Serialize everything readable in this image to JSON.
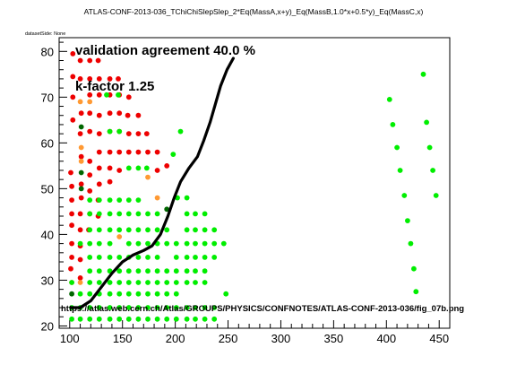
{
  "chart_data": {
    "type": "scatter",
    "title": "ATLAS-CONF-2013-036_TChiChiSlepSlep_2*Eq(MassA,x+y)_Eq(MassB,1.0*x+0.5*y)_Eq(MassC,x)",
    "subtitle": "datasetSide: None",
    "xlabel": "",
    "ylabel": "",
    "xlim": [
      90,
      460
    ],
    "ylim": [
      19.5,
      83
    ],
    "xticks": [
      100,
      150,
      200,
      250,
      300,
      350,
      400,
      450
    ],
    "yticks": [
      20,
      30,
      40,
      50,
      60,
      70,
      80
    ],
    "grid": false,
    "colors": {
      "red": "#ee0000",
      "green": "#00ee00",
      "orange": "#ff9933",
      "darkgreen": "#006600",
      "line": "#000000"
    },
    "annotations": {
      "agreement": "validation agreement 40.0 %",
      "kfactor": "k-factor 1.25",
      "url": "https://atlas.web.cern.ch/Atlas/GROUPS/PHYSICS/CONFNOTES/ATLAS-CONF-2013-036/fig_07b.png"
    },
    "series": [
      {
        "color": "red",
        "points": [
          [
            103,
            79.5
          ],
          [
            103,
            74.5
          ],
          [
            103,
            70
          ],
          [
            103,
            65
          ],
          [
            101,
            53.5
          ],
          [
            102,
            50.5
          ],
          [
            102,
            47.5
          ],
          [
            102,
            44.5
          ],
          [
            102,
            42
          ],
          [
            102,
            38
          ],
          [
            102,
            35
          ],
          [
            101,
            32.5
          ],
          [
            110,
            78
          ],
          [
            110,
            74
          ],
          [
            111,
            66.5
          ],
          [
            110,
            62
          ],
          [
            111,
            57
          ],
          [
            111,
            51
          ],
          [
            111,
            48
          ],
          [
            110,
            44.5
          ],
          [
            110,
            41
          ],
          [
            110,
            37.5
          ],
          [
            110,
            34.5
          ],
          [
            110,
            30.5
          ],
          [
            119,
            78
          ],
          [
            119,
            74
          ],
          [
            119,
            70.5
          ],
          [
            119,
            66.5
          ],
          [
            119,
            62.5
          ],
          [
            119,
            56
          ],
          [
            119,
            53
          ],
          [
            119,
            49.5
          ],
          [
            119,
            44.5
          ],
          [
            118,
            41
          ],
          [
            127,
            78
          ],
          [
            128,
            74
          ],
          [
            128,
            70.5
          ],
          [
            128,
            66
          ],
          [
            128,
            62
          ],
          [
            128,
            58
          ],
          [
            128,
            54.5
          ],
          [
            128,
            51
          ],
          [
            127,
            47.5
          ],
          [
            127,
            44
          ],
          [
            138,
            74
          ],
          [
            138,
            70.5
          ],
          [
            138,
            66.5
          ],
          [
            138,
            62.5
          ],
          [
            138,
            58
          ],
          [
            138,
            54.5
          ],
          [
            138,
            51.5
          ],
          [
            146,
            74
          ],
          [
            147,
            70.5
          ],
          [
            147,
            66.5
          ],
          [
            147,
            62.5
          ],
          [
            147,
            58
          ],
          [
            147,
            54
          ],
          [
            156,
            70
          ],
          [
            155,
            66
          ],
          [
            156,
            62
          ],
          [
            156,
            58
          ],
          [
            165,
            66
          ],
          [
            165,
            62
          ],
          [
            165,
            58
          ],
          [
            173,
            62
          ],
          [
            174,
            58
          ],
          [
            183,
            58
          ],
          [
            183,
            54
          ],
          [
            192,
            55
          ]
        ]
      },
      {
        "color": "orange",
        "points": [
          [
            110,
            69
          ],
          [
            119,
            69
          ],
          [
            111,
            59
          ],
          [
            111,
            56
          ],
          [
            102,
            29.5
          ],
          [
            110,
            29.5
          ],
          [
            174,
            52.5
          ],
          [
            183,
            48
          ],
          [
            147,
            39.5
          ]
        ]
      },
      {
        "color": "darkgreen",
        "points": [
          [
            111,
            63.5
          ],
          [
            111,
            53.5
          ],
          [
            111,
            50
          ],
          [
            102,
            27
          ],
          [
            192,
            45.5
          ]
        ]
      },
      {
        "color": "green",
        "points": [
          [
            135,
            70.5
          ],
          [
            146,
            70.5
          ],
          [
            138,
            62.5
          ],
          [
            147,
            62.5
          ],
          [
            205,
            62.5
          ],
          [
            198,
            57.5
          ],
          [
            173,
            54.5
          ],
          [
            156,
            54.5
          ],
          [
            165,
            54.5
          ],
          [
            119,
            47.5
          ],
          [
            128,
            47.5
          ],
          [
            138,
            47.5
          ],
          [
            147,
            47.5
          ],
          [
            156,
            47.5
          ],
          [
            165,
            47.5
          ],
          [
            119,
            44.5
          ],
          [
            128,
            44.5
          ],
          [
            138,
            44.5
          ],
          [
            147,
            44.5
          ],
          [
            156,
            44.5
          ],
          [
            165,
            44.5
          ],
          [
            174,
            44.5
          ],
          [
            183,
            44.5
          ],
          [
            202,
            48
          ],
          [
            211,
            48
          ],
          [
            119,
            41
          ],
          [
            128,
            41
          ],
          [
            138,
            41
          ],
          [
            147,
            41
          ],
          [
            156,
            41
          ],
          [
            165,
            41
          ],
          [
            174,
            41
          ],
          [
            183,
            41
          ],
          [
            192,
            41
          ],
          [
            211,
            44.5
          ],
          [
            219,
            44.5
          ],
          [
            228,
            44.5
          ],
          [
            110,
            38
          ],
          [
            119,
            38
          ],
          [
            128,
            38
          ],
          [
            138,
            38
          ],
          [
            156,
            38
          ],
          [
            165,
            38
          ],
          [
            174,
            38
          ],
          [
            183,
            38
          ],
          [
            192,
            38
          ],
          [
            201,
            38
          ],
          [
            211,
            41
          ],
          [
            219,
            41
          ],
          [
            228,
            41
          ],
          [
            237,
            41
          ],
          [
            119,
            35
          ],
          [
            128,
            35
          ],
          [
            138,
            35
          ],
          [
            147,
            35
          ],
          [
            156,
            35
          ],
          [
            165,
            35
          ],
          [
            174,
            35
          ],
          [
            183,
            35
          ],
          [
            201,
            35
          ],
          [
            211,
            38
          ],
          [
            219,
            38
          ],
          [
            228,
            38
          ],
          [
            237,
            38
          ],
          [
            246,
            38
          ],
          [
            119,
            32
          ],
          [
            128,
            32
          ],
          [
            138,
            32
          ],
          [
            147,
            32
          ],
          [
            156,
            32
          ],
          [
            165,
            32
          ],
          [
            174,
            32
          ],
          [
            183,
            32
          ],
          [
            192,
            32
          ],
          [
            201,
            32
          ],
          [
            211,
            35
          ],
          [
            219,
            35
          ],
          [
            228,
            35
          ],
          [
            237,
            35
          ],
          [
            102,
            29.5
          ],
          [
            119,
            29.5
          ],
          [
            128,
            29.5
          ],
          [
            138,
            29.5
          ],
          [
            147,
            29.5
          ],
          [
            156,
            29.5
          ],
          [
            165,
            29.5
          ],
          [
            174,
            29.5
          ],
          [
            183,
            29.5
          ],
          [
            192,
            29.5
          ],
          [
            201,
            29.5
          ],
          [
            211,
            32
          ],
          [
            219,
            32
          ],
          [
            228,
            32
          ],
          [
            110,
            27
          ],
          [
            119,
            27
          ],
          [
            128,
            27
          ],
          [
            138,
            27
          ],
          [
            147,
            27
          ],
          [
            156,
            27
          ],
          [
            165,
            27
          ],
          [
            174,
            27
          ],
          [
            183,
            27
          ],
          [
            192,
            27
          ],
          [
            201,
            27
          ],
          [
            211,
            29.5
          ],
          [
            219,
            29.5
          ],
          [
            228,
            29.5
          ],
          [
            248,
            27
          ],
          [
            102,
            24
          ],
          [
            110,
            24
          ],
          [
            119,
            24
          ],
          [
            128,
            24
          ],
          [
            138,
            24
          ],
          [
            147,
            24
          ],
          [
            156,
            24
          ],
          [
            165,
            24
          ],
          [
            174,
            24
          ],
          [
            183,
            24
          ],
          [
            192,
            24
          ],
          [
            201,
            24
          ],
          [
            211,
            24
          ],
          [
            219,
            24
          ],
          [
            228,
            24
          ],
          [
            237,
            24
          ],
          [
            102,
            21.5
          ],
          [
            110,
            21.5
          ],
          [
            119,
            21.5
          ],
          [
            128,
            21.5
          ],
          [
            138,
            21.5
          ],
          [
            147,
            21.5
          ],
          [
            156,
            21.5
          ],
          [
            165,
            21.5
          ],
          [
            174,
            21.5
          ],
          [
            183,
            21.5
          ],
          [
            192,
            21.5
          ],
          [
            201,
            21.5
          ],
          [
            211,
            21.5
          ],
          [
            219,
            21.5
          ],
          [
            228,
            21.5
          ],
          [
            237,
            21.5
          ],
          [
            403,
            69.5
          ],
          [
            406,
            64
          ],
          [
            410,
            59
          ],
          [
            413,
            54
          ],
          [
            417,
            48.5
          ],
          [
            420,
            43
          ],
          [
            423,
            38
          ],
          [
            426,
            32.5
          ],
          [
            428,
            27.5
          ],
          [
            435,
            75
          ],
          [
            438,
            64.5
          ],
          [
            441,
            59
          ],
          [
            444,
            54
          ],
          [
            447,
            48.5
          ]
        ]
      }
    ],
    "line": [
      [
        101,
        24
      ],
      [
        110,
        24
      ],
      [
        120,
        25.5
      ],
      [
        130,
        28.5
      ],
      [
        140,
        31.5
      ],
      [
        150,
        34
      ],
      [
        160,
        35.5
      ],
      [
        170,
        36.5
      ],
      [
        178,
        37.5
      ],
      [
        186,
        40
      ],
      [
        193,
        44
      ],
      [
        199,
        48
      ],
      [
        205,
        51.5
      ],
      [
        213,
        54.5
      ],
      [
        221,
        57
      ],
      [
        227,
        60.5
      ],
      [
        233,
        64.5
      ],
      [
        238,
        68.5
      ],
      [
        243,
        72.5
      ],
      [
        249,
        76
      ],
      [
        255,
        78.5
      ]
    ]
  }
}
